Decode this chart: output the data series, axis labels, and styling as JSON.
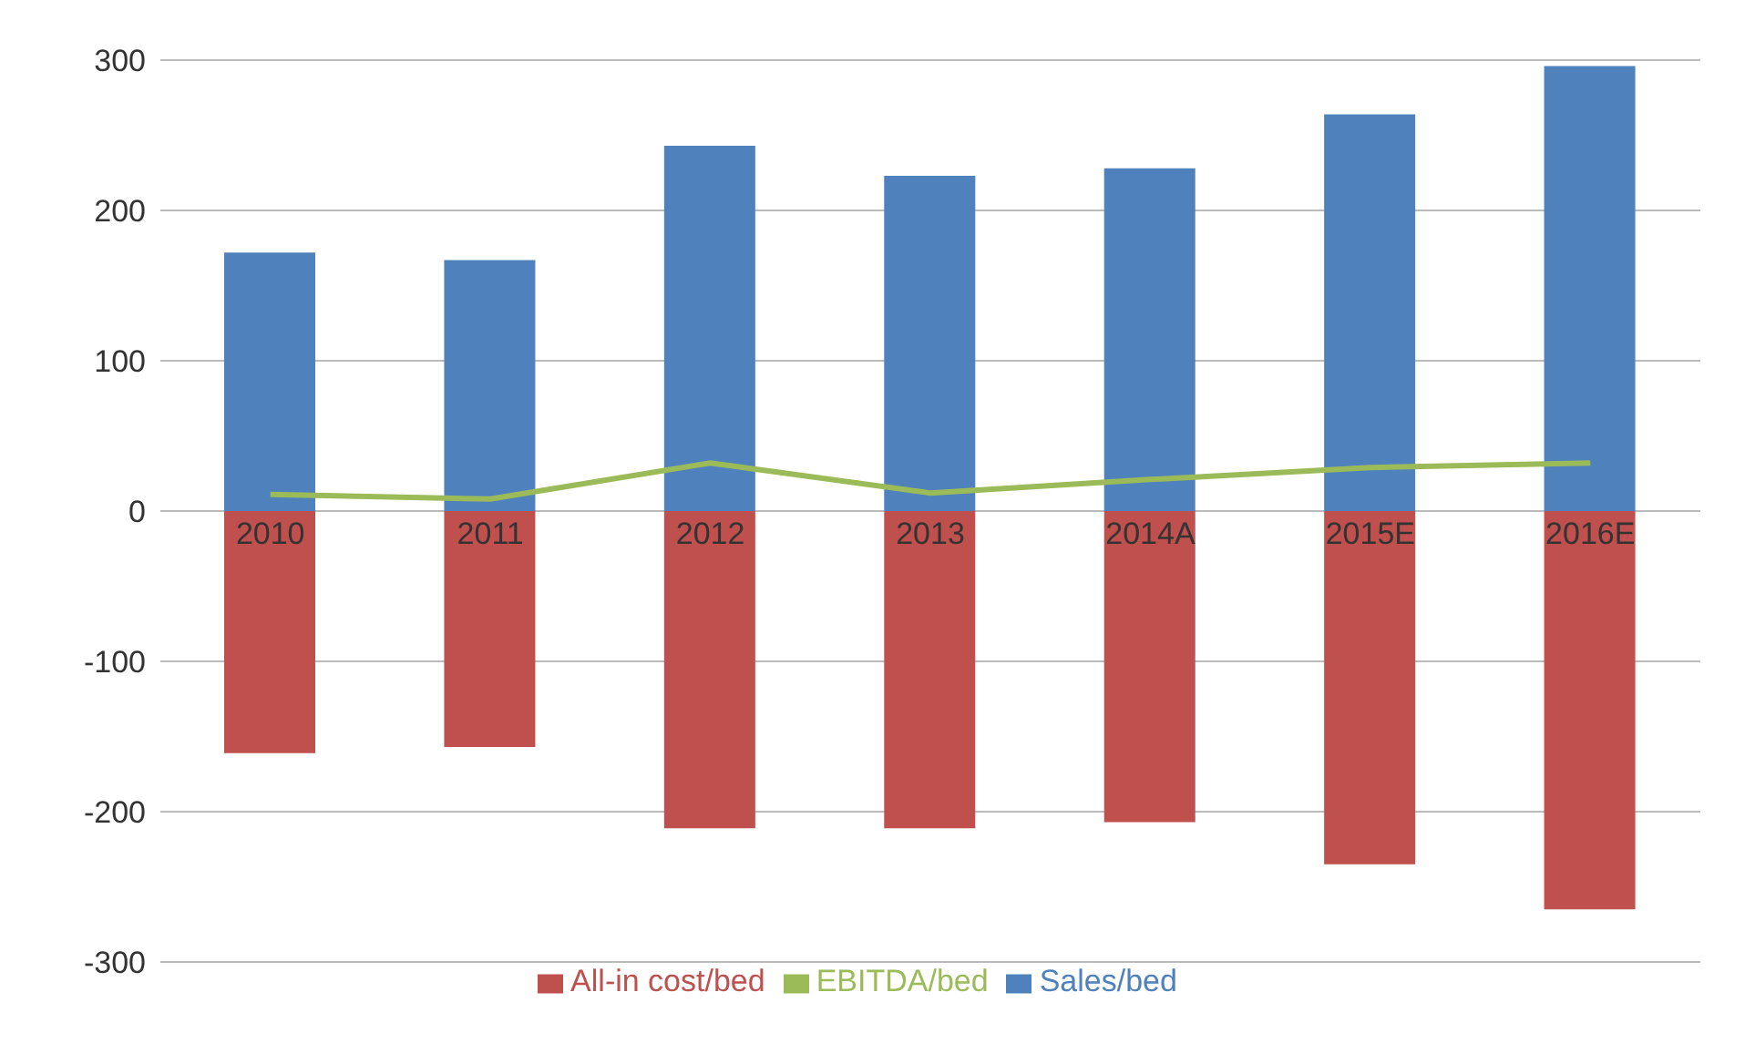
{
  "chart_data": {
    "type": "bar",
    "stacked": true,
    "categories": [
      "2010",
      "2011",
      "2012",
      "2013",
      "2014A",
      "2015E",
      "2016E"
    ],
    "series": [
      {
        "name": "Sales/bed",
        "color": "#4f81bd",
        "values": [
          172,
          167,
          243,
          223,
          228,
          264,
          296
        ]
      },
      {
        "name": "All-in cost/bed",
        "color": "#c0504d",
        "values": [
          -161,
          -157,
          -211,
          -211,
          -207,
          -235,
          -265
        ]
      },
      {
        "name": "EBITDA/bed",
        "type": "line",
        "color": "#9bbb59",
        "values": [
          11,
          8,
          32,
          12,
          21,
          29,
          32
        ]
      }
    ],
    "ylim": [
      -300,
      300
    ],
    "yticks": [
      -300,
      -200,
      -100,
      0,
      100,
      200,
      300
    ],
    "grid": "y",
    "legend": "bottom",
    "marker": "none"
  }
}
